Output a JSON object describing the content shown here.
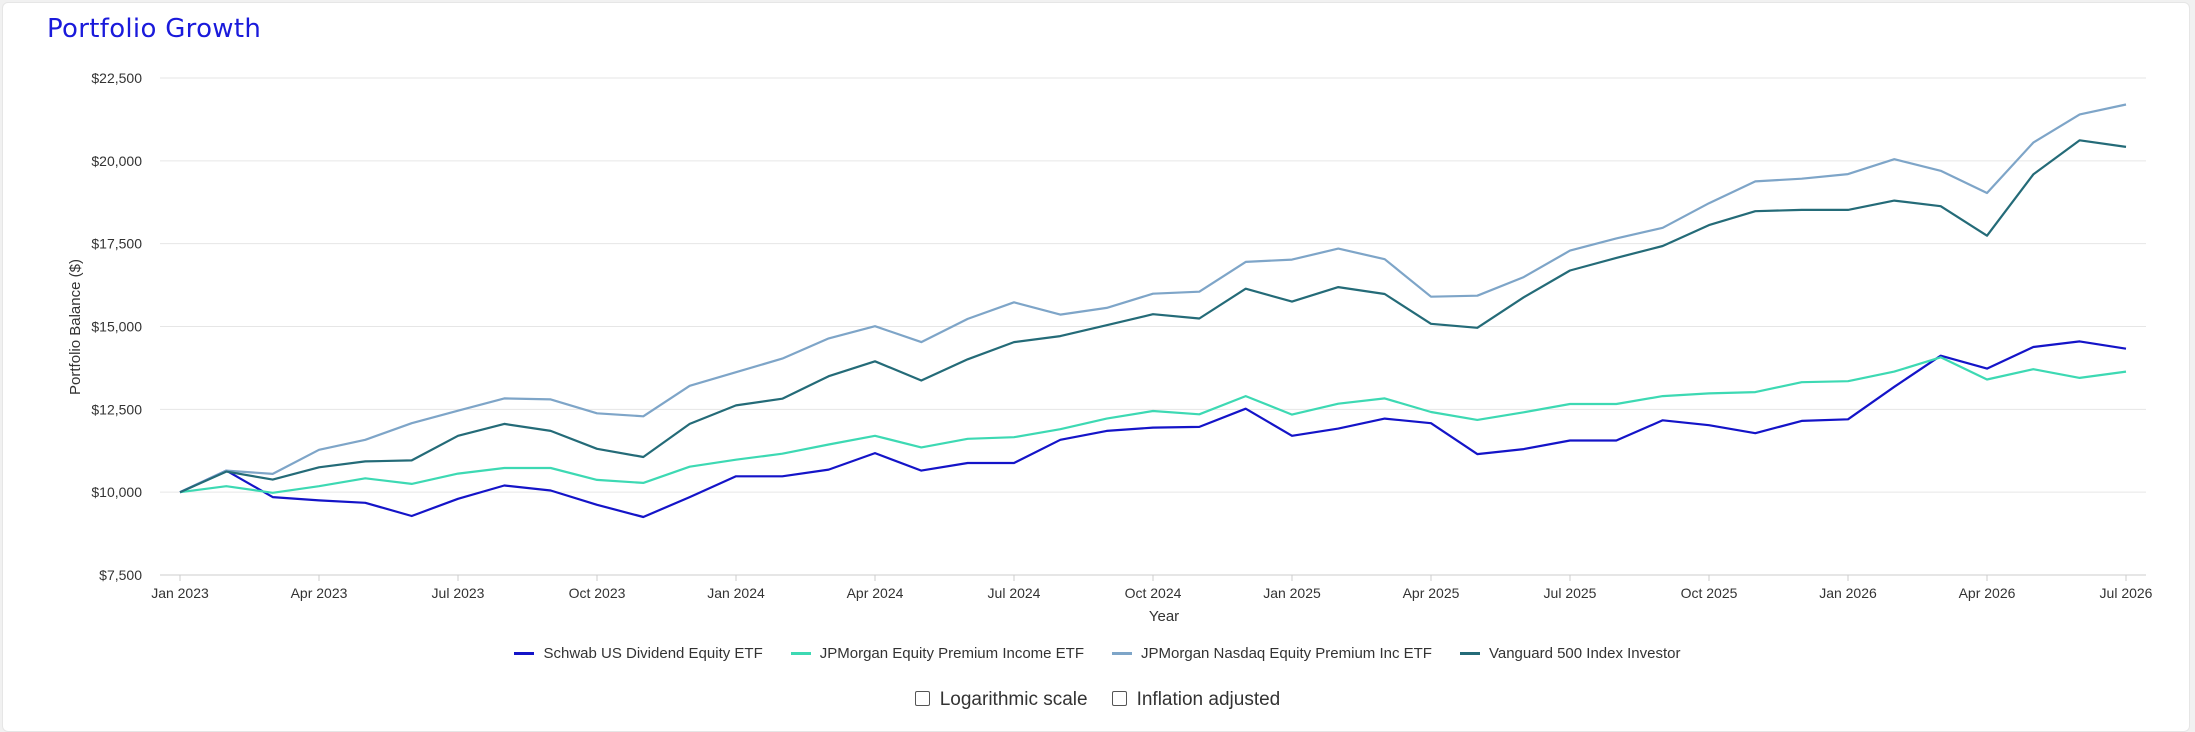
{
  "title": "Portfolio Growth",
  "options": {
    "log_scale_label": "Logarithmic scale",
    "inflation_label": "Inflation adjusted",
    "log_scale_checked": false,
    "inflation_checked": false
  },
  "chart_data": {
    "type": "line",
    "xlabel": "Year",
    "ylabel": "Portfolio Balance ($)",
    "ylim": [
      7500,
      22500
    ],
    "yticks": [
      7500,
      10000,
      12500,
      15000,
      17500,
      20000,
      22500
    ],
    "ytick_labels": [
      "$7,500",
      "$10,000",
      "$12,500",
      "$15,000",
      "$17,500",
      "$20,000",
      "$22,500"
    ],
    "xtick_labels": [
      "Jan 2023",
      "Apr 2023",
      "Jul 2023",
      "Oct 2023",
      "Jan 2024",
      "Apr 2024",
      "Jul 2024",
      "Oct 2024",
      "Jan 2025",
      "Apr 2025",
      "Jul 2025",
      "Oct 2025",
      "Jan 2026",
      "Apr 2026",
      "Jul 2026"
    ],
    "x": [
      "2023-01",
      "2023-02",
      "2023-03",
      "2023-04",
      "2023-05",
      "2023-06",
      "2023-07",
      "2023-08",
      "2023-09",
      "2023-10",
      "2023-11",
      "2023-12",
      "2024-01",
      "2024-02",
      "2024-03",
      "2024-04",
      "2024-05",
      "2024-06",
      "2024-07",
      "2024-08",
      "2024-09",
      "2024-10",
      "2024-11",
      "2024-12",
      "2025-01",
      "2025-02",
      "2025-03",
      "2025-04",
      "2025-05",
      "2025-06",
      "2025-07",
      "2025-08",
      "2025-09",
      "2025-10",
      "2025-11",
      "2025-12",
      "2026-01",
      "2026-02",
      "2026-03",
      "2026-04",
      "2026-05",
      "2026-06",
      "2026-07"
    ],
    "grid": true,
    "legend_position": "bottom",
    "series": [
      {
        "name": "Schwab US Dividend Equity ETF",
        "color": "#1414c8",
        "values": [
          10000,
          10650,
          9850,
          9750,
          9680,
          9280,
          9800,
          10200,
          10050,
          9620,
          9250,
          9850,
          10480,
          10480,
          10680,
          11180,
          10650,
          10880,
          10880,
          11580,
          11850,
          11950,
          11970,
          12520,
          11700,
          11920,
          12220,
          12080,
          11150,
          11300,
          11560,
          11560,
          12170,
          12020,
          11780,
          12150,
          12200,
          13180,
          14120,
          13730,
          14380,
          14550,
          14330
        ]
      },
      {
        "name": "JPMorgan Equity Premium Income ETF",
        "color": "#3dd9b3",
        "values": [
          10000,
          10180,
          9980,
          10180,
          10420,
          10250,
          10560,
          10730,
          10730,
          10370,
          10280,
          10770,
          10980,
          11160,
          11440,
          11700,
          11350,
          11610,
          11660,
          11900,
          12220,
          12450,
          12350,
          12900,
          12340,
          12670,
          12830,
          12420,
          12180,
          12410,
          12660,
          12660,
          12900,
          12980,
          13020,
          13320,
          13350,
          13640,
          14070,
          13400,
          13710,
          13450,
          13640
        ]
      },
      {
        "name": "JPMorgan Nasdaq Equity Premium Inc ETF",
        "color": "#7ea5c8",
        "values": [
          10000,
          10650,
          10550,
          11280,
          11580,
          12080,
          12460,
          12830,
          12800,
          12380,
          12290,
          13210,
          13620,
          14030,
          14640,
          15010,
          14530,
          15230,
          15730,
          15360,
          15560,
          15990,
          16050,
          16950,
          17020,
          17350,
          17030,
          15900,
          15930,
          16490,
          17290,
          17660,
          17980,
          18720,
          19380,
          19460,
          19600,
          20050,
          19700,
          19030,
          20550,
          21400,
          21700
        ]
      },
      {
        "name": "Vanguard 500 Index Investor",
        "color": "#246b78",
        "values": [
          10000,
          10620,
          10380,
          10750,
          10930,
          10960,
          11700,
          12060,
          11850,
          11310,
          11060,
          12060,
          12620,
          12820,
          13500,
          13950,
          13370,
          14010,
          14530,
          14710,
          15040,
          15370,
          15240,
          16140,
          15750,
          16190,
          15980,
          15080,
          14960,
          15880,
          16690,
          17070,
          17430,
          18060,
          18480,
          18520,
          18520,
          18800,
          18630,
          17740,
          19590,
          20620,
          20420
        ]
      }
    ]
  }
}
